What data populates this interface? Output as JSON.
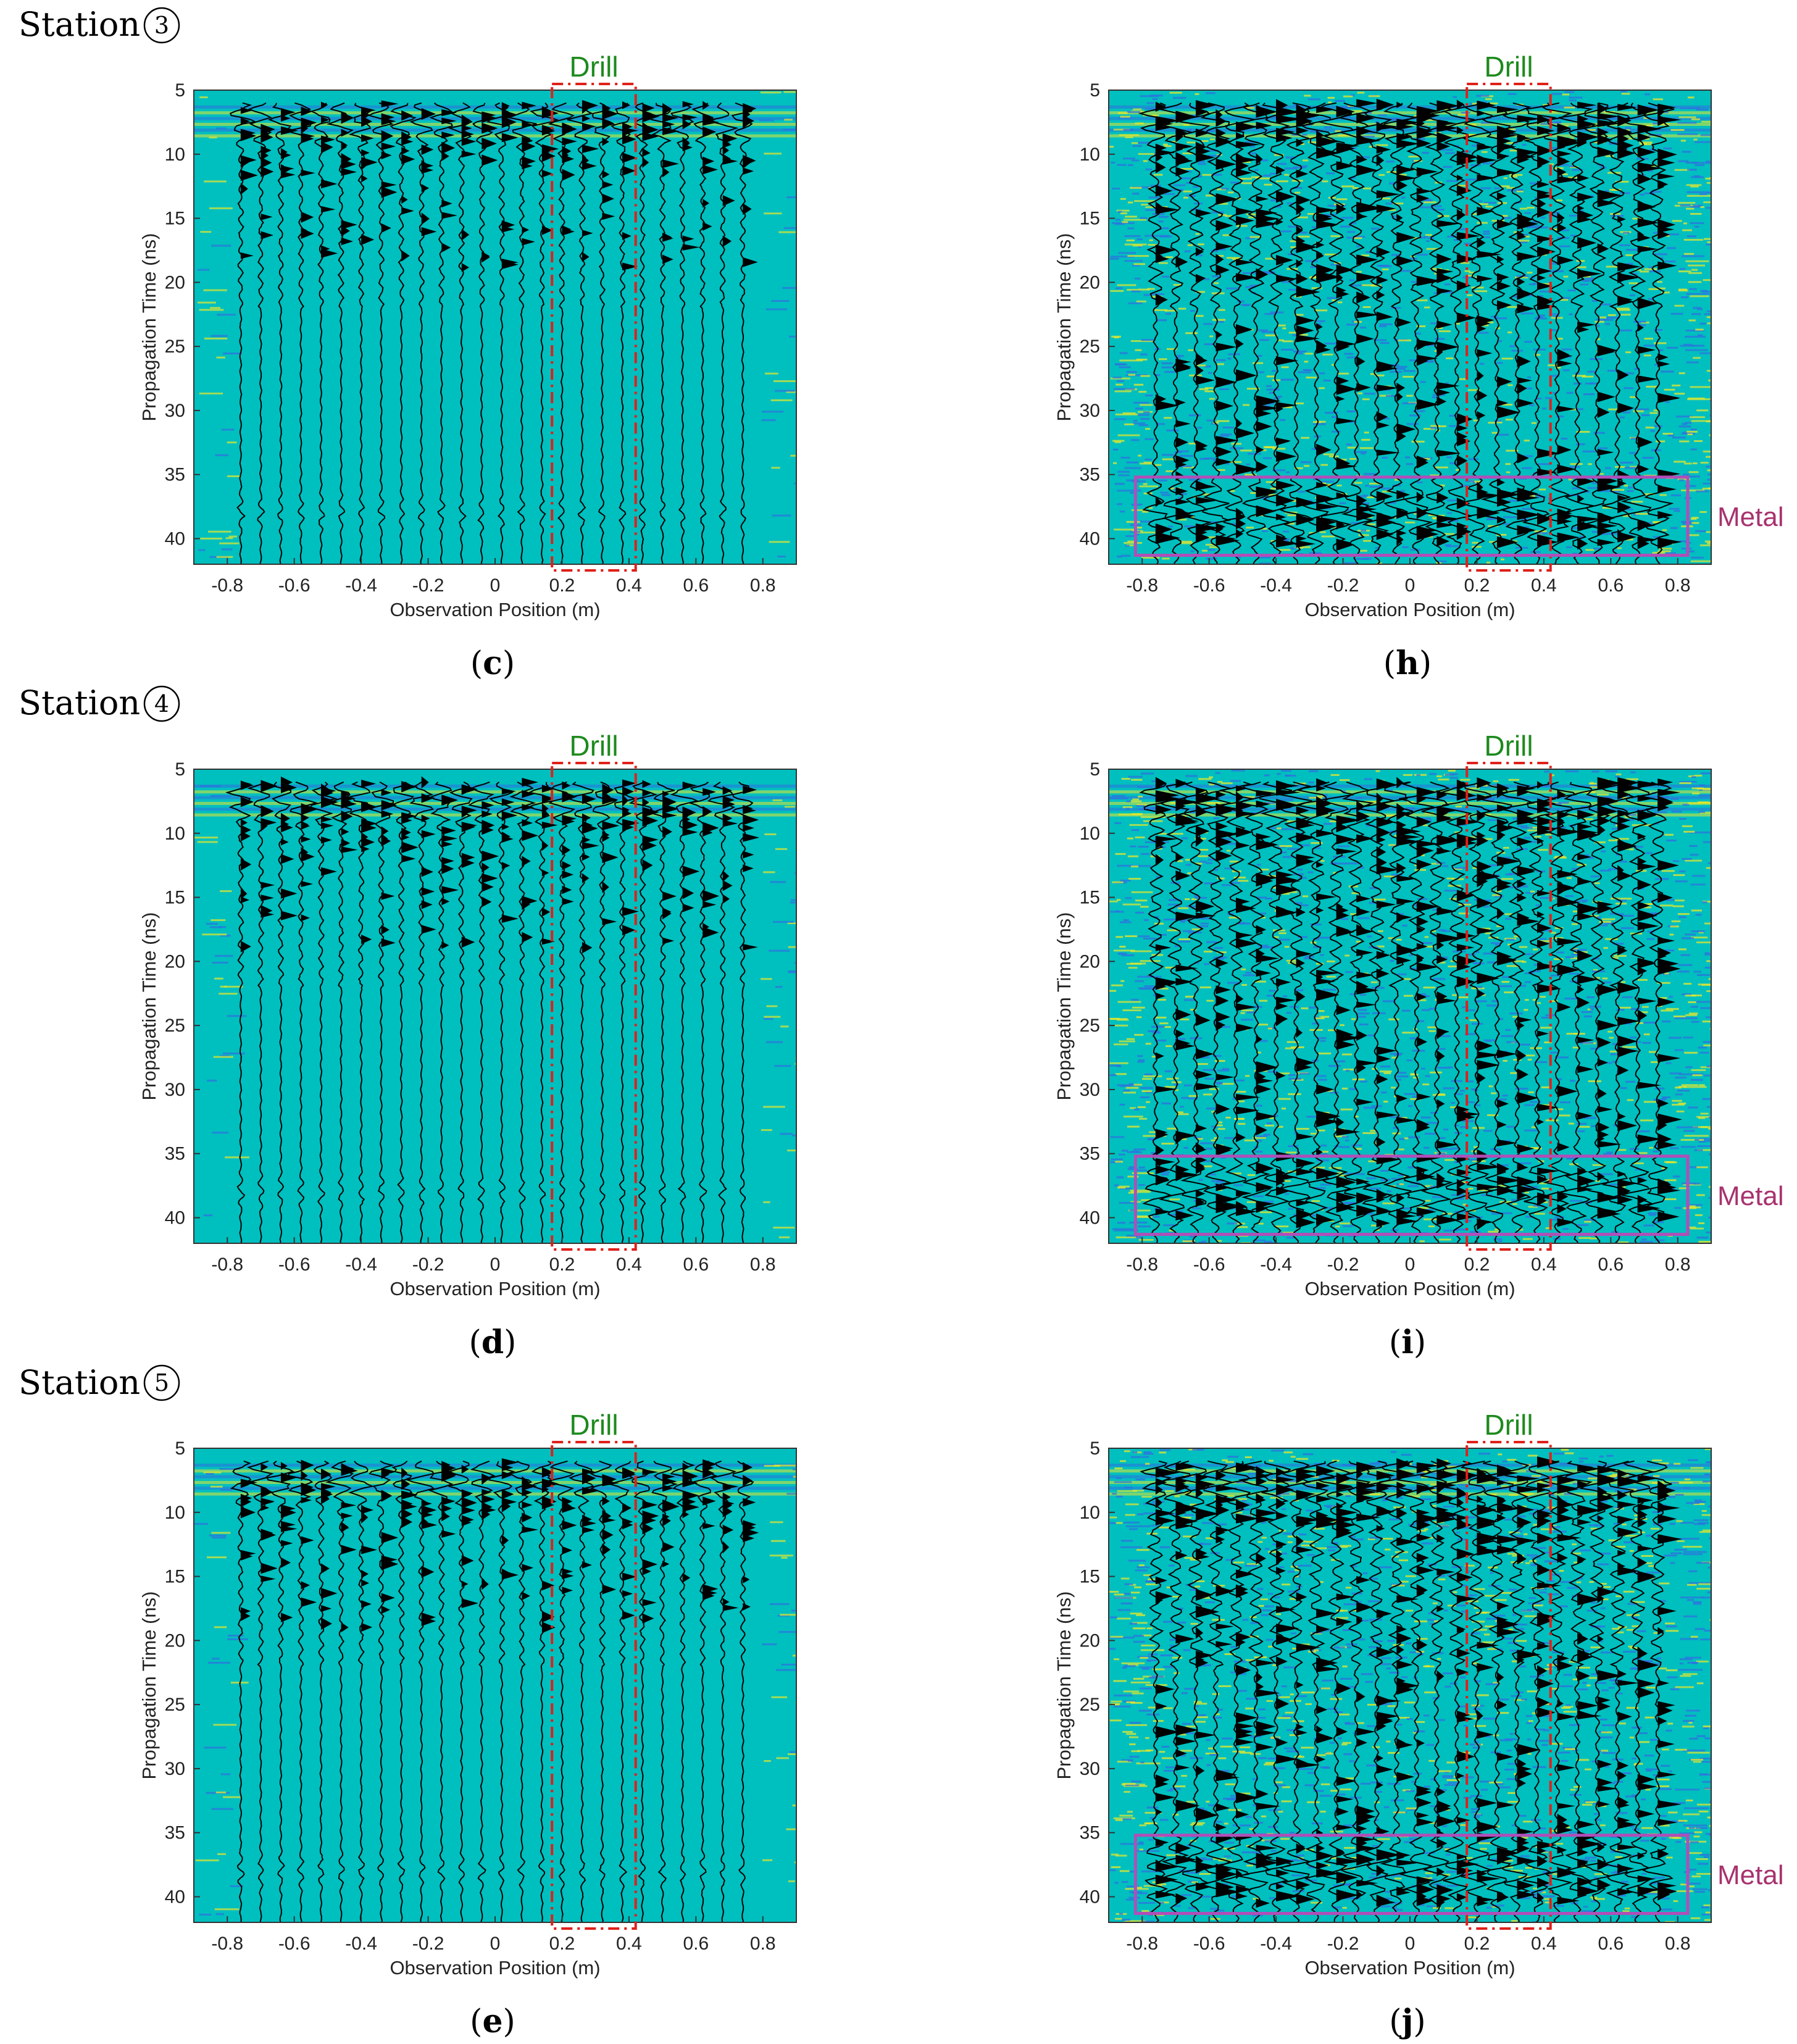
{
  "figure": {
    "stations": [
      {
        "label": "Station",
        "number": "3"
      },
      {
        "label": "Station",
        "number": "4"
      },
      {
        "label": "Station",
        "number": "5"
      }
    ],
    "annotations": {
      "drill_label": "Drill",
      "metal_label": "Metal"
    },
    "colors": {
      "background": "#00bfbf",
      "trace": "#000000",
      "drill_box": "#e0201a",
      "metal_box": "#b04fb8",
      "drill_text": "#1d8a1d",
      "metal_text": "#a8326e",
      "noise_yellow": "#e8e82a",
      "noise_blue": "#2f6fe0"
    }
  },
  "chart_data": [
    {
      "id": "c",
      "sublabel": "c",
      "type": "heatmap",
      "station": "3",
      "xlabel": "Observation Position (m)",
      "ylabel": "Propagation Time (ns)",
      "xlim": [
        -0.9,
        0.9
      ],
      "ylim": [
        5,
        42
      ],
      "xticks": [
        "-0.8",
        "-0.6",
        "-0.4",
        "-0.2",
        "0",
        "0.2",
        "0.4",
        "0.6",
        "0.8"
      ],
      "yticks": [
        "5",
        "10",
        "15",
        "20",
        "25",
        "30",
        "35",
        "40"
      ],
      "drill_box": {
        "x": [
          0.17,
          0.42
        ],
        "t": [
          5,
          42
        ]
      },
      "metal_box": null,
      "noise_level": "low"
    },
    {
      "id": "h",
      "sublabel": "h",
      "type": "heatmap",
      "station": "3",
      "xlabel": "Observation Position (m)",
      "ylabel": "Propagation Time (ns)",
      "xlim": [
        -0.9,
        0.9
      ],
      "ylim": [
        5,
        42
      ],
      "xticks": [
        "-0.8",
        "-0.6",
        "-0.4",
        "-0.2",
        "0",
        "0.2",
        "0.4",
        "0.6",
        "0.8"
      ],
      "yticks": [
        "5",
        "10",
        "15",
        "20",
        "25",
        "30",
        "35",
        "40"
      ],
      "drill_box": {
        "x": [
          0.17,
          0.42
        ],
        "t": [
          5,
          42
        ]
      },
      "metal_box": {
        "x": [
          -0.82,
          0.83
        ],
        "t": [
          35.2,
          41.3
        ]
      },
      "noise_level": "high"
    },
    {
      "id": "d",
      "sublabel": "d",
      "type": "heatmap",
      "station": "4",
      "xlabel": "Observation Position (m)",
      "ylabel": "Propagation Time (ns)",
      "xlim": [
        -0.9,
        0.9
      ],
      "ylim": [
        5,
        42
      ],
      "xticks": [
        "-0.8",
        "-0.6",
        "-0.4",
        "-0.2",
        "0",
        "0.2",
        "0.4",
        "0.6",
        "0.8"
      ],
      "yticks": [
        "5",
        "10",
        "15",
        "20",
        "25",
        "30",
        "35",
        "40"
      ],
      "drill_box": {
        "x": [
          0.17,
          0.42
        ],
        "t": [
          5,
          42
        ]
      },
      "metal_box": null,
      "noise_level": "low"
    },
    {
      "id": "i",
      "sublabel": "i",
      "type": "heatmap",
      "station": "4",
      "xlabel": "Observation Position (m)",
      "ylabel": "Propagation Time (ns)",
      "xlim": [
        -0.9,
        0.9
      ],
      "ylim": [
        5,
        42
      ],
      "xticks": [
        "-0.8",
        "-0.6",
        "-0.4",
        "-0.2",
        "0",
        "0.2",
        "0.4",
        "0.6",
        "0.8"
      ],
      "yticks": [
        "5",
        "10",
        "15",
        "20",
        "25",
        "30",
        "35",
        "40"
      ],
      "drill_box": {
        "x": [
          0.17,
          0.42
        ],
        "t": [
          5,
          42
        ]
      },
      "metal_box": {
        "x": [
          -0.82,
          0.83
        ],
        "t": [
          35.2,
          41.3
        ]
      },
      "noise_level": "high"
    },
    {
      "id": "e",
      "sublabel": "e",
      "type": "heatmap",
      "station": "5",
      "xlabel": "Observation Position (m)",
      "ylabel": "Propagation Time (ns)",
      "xlim": [
        -0.9,
        0.9
      ],
      "ylim": [
        5,
        42
      ],
      "xticks": [
        "-0.8",
        "-0.6",
        "-0.4",
        "-0.2",
        "0",
        "0.2",
        "0.4",
        "0.6",
        "0.8"
      ],
      "yticks": [
        "5",
        "10",
        "15",
        "20",
        "25",
        "30",
        "35",
        "40"
      ],
      "drill_box": {
        "x": [
          0.17,
          0.42
        ],
        "t": [
          5,
          42
        ]
      },
      "metal_box": null,
      "noise_level": "low"
    },
    {
      "id": "j",
      "sublabel": "j",
      "type": "heatmap",
      "station": "5",
      "xlabel": "Observation Position (m)",
      "ylabel": "Propagation Time (ns)",
      "xlim": [
        -0.9,
        0.9
      ],
      "ylim": [
        5,
        42
      ],
      "xticks": [
        "-0.8",
        "-0.6",
        "-0.4",
        "-0.2",
        "0",
        "0.2",
        "0.4",
        "0.6",
        "0.8"
      ],
      "yticks": [
        "5",
        "10",
        "15",
        "20",
        "25",
        "30",
        "35",
        "40"
      ],
      "drill_box": {
        "x": [
          0.17,
          0.42
        ],
        "t": [
          5,
          42
        ]
      },
      "metal_box": {
        "x": [
          -0.82,
          0.83
        ],
        "t": [
          35.2,
          41.3
        ]
      },
      "noise_level": "high"
    }
  ]
}
